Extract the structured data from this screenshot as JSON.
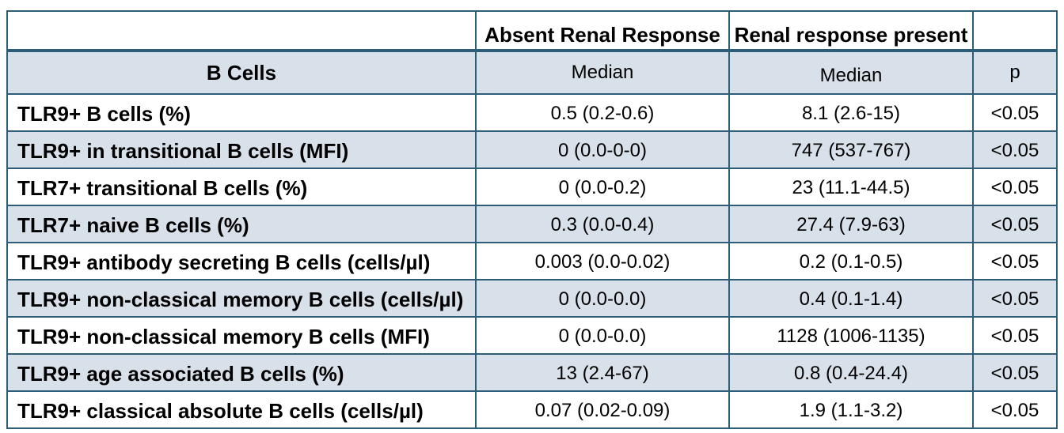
{
  "table": {
    "border_color": "#2e5d7a",
    "stripe_color": "#d8e1e9",
    "headers": {
      "blank_left": "",
      "absent_group": "Absent Renal Response",
      "present_group": "Renal response present",
      "blank_right": "",
      "row_label_title": "B Cells",
      "absent_sub": "Median",
      "present_sub": "Median",
      "p": "p"
    },
    "rows": [
      {
        "label": "TLR9+ B cells (%)",
        "absent": "0.5 (0.2-0.6)",
        "present": "8.1 (2.6-15)",
        "p": "<0.05"
      },
      {
        "label": "TLR9+ in transitional B cells (MFI)",
        "absent": "0 (0.0-0-0)",
        "present": "747 (537-767)",
        "p": "<0.05"
      },
      {
        "label": "TLR7+ transitional B cells (%)",
        "absent": "0 (0.0-0.2)",
        "present": "23 (11.1-44.5)",
        "p": "<0.05"
      },
      {
        "label": "TLR7+ naive B cells (%)",
        "absent": "0.3 (0.0-0.4)",
        "present": "27.4 (7.9-63)",
        "p": "<0.05"
      },
      {
        "label": "TLR9+ antibody secreting B cells (cells/µl)",
        "absent": "0.003 (0.0-0.02)",
        "present": "0.2 (0.1-0.5)",
        "p": "<0.05"
      },
      {
        "label": "TLR9+ non-classical memory B cells (cells/µl)",
        "absent": "0 (0.0-0.0)",
        "present": "0.4 (0.1-1.4)",
        "p": "<0.05"
      },
      {
        "label": "TLR9+ non-classical memory B cells (MFI)",
        "absent": "0 (0.0-0.0)",
        "present": "1128 (1006-1135)",
        "p": "<0.05"
      },
      {
        "label": "TLR9+ age associated B cells (%)",
        "absent": "13 (2.4-67)",
        "present": "0.8 (0.4-24.4)",
        "p": "<0.05"
      },
      {
        "label": "TLR9+ classical absolute B cells (cells/µl)",
        "absent": "0.07 (0.02-0.09)",
        "present": "1.9 (1.1-3.2)",
        "p": "<0.05"
      }
    ]
  },
  "chart_data": {
    "type": "table",
    "columns": [
      "B Cells",
      "Absent Renal Response (Median)",
      "Renal response present (Median)",
      "p"
    ],
    "rows": [
      [
        "TLR9+ B cells (%)",
        "0.5 (0.2-0.6)",
        "8.1 (2.6-15)",
        "<0.05"
      ],
      [
        "TLR9+ in transitional B cells (MFI)",
        "0 (0.0-0-0)",
        "747 (537-767)",
        "<0.05"
      ],
      [
        "TLR7+ transitional B cells (%)",
        "0 (0.0-0.2)",
        "23 (11.1-44.5)",
        "<0.05"
      ],
      [
        "TLR7+ naive B cells (%)",
        "0.3 (0.0-0.4)",
        "27.4 (7.9-63)",
        "<0.05"
      ],
      [
        "TLR9+ antibody secreting B cells (cells/µl)",
        "0.003 (0.0-0.02)",
        "0.2 (0.1-0.5)",
        "<0.05"
      ],
      [
        "TLR9+ non-classical memory B cells (cells/µl)",
        "0 (0.0-0.0)",
        "0.4 (0.1-1.4)",
        "<0.05"
      ],
      [
        "TLR9+ non-classical memory B cells (MFI)",
        "0 (0.0-0.0)",
        "1128 (1006-1135)",
        "<0.05"
      ],
      [
        "TLR9+ age associated B cells (%)",
        "13 (2.4-67)",
        "0.8 (0.4-24.4)",
        "<0.05"
      ],
      [
        "TLR9+ classical absolute B cells (cells/µl)",
        "0.07 (0.02-0.09)",
        "1.9 (1.1-3.2)",
        "<0.05"
      ]
    ]
  }
}
